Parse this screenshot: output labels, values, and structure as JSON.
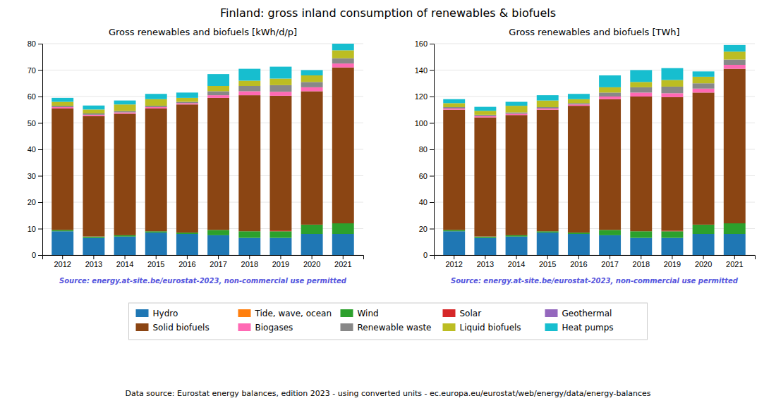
{
  "title": "Finland: gross inland consumption of renewables & biofuels",
  "annotations": [
    "Data source: Eurostat energy balances, edition 2023 - using converted units - ec.europa.eu/eurostat/web/energy/data/energy-balances"
  ],
  "chart_data": [
    {
      "type": "bar",
      "stacked": true,
      "grid": true,
      "legend": "bottom",
      "title": "Gross renewables and biofuels [kWh/d/p]",
      "annotations": [
        "Source: energy.at-site.be/eurostat-2023, non-commercial use permitted"
      ],
      "categories": [
        "2012",
        "2013",
        "2014",
        "2015",
        "2016",
        "2017",
        "2018",
        "2019",
        "2020",
        "2021"
      ],
      "ylim": [
        0,
        80
      ],
      "yticks": [
        0,
        10,
        20,
        30,
        40,
        50,
        60,
        70,
        80
      ],
      "series": [
        {
          "name": "Hydro",
          "color": "#1f77b4",
          "values": [
            9.0,
            6.5,
            7.0,
            8.5,
            8.0,
            7.5,
            6.5,
            6.5,
            8.0,
            8.0
          ]
        },
        {
          "name": "Tide, wave, ocean",
          "color": "#ff7f0e",
          "values": [
            0.0,
            0.0,
            0.0,
            0.0,
            0.0,
            0.0,
            0.0,
            0.0,
            0.0,
            0.0
          ]
        },
        {
          "name": "Wind",
          "color": "#2ca02c",
          "values": [
            0.5,
            0.5,
            0.5,
            0.5,
            0.5,
            2.0,
            2.5,
            2.5,
            3.5,
            4.0
          ]
        },
        {
          "name": "Solar",
          "color": "#d62728",
          "values": [
            0.0,
            0.1,
            0.0,
            0.0,
            0.0,
            0.0,
            0.0,
            0.3,
            0.0,
            0.0
          ]
        },
        {
          "name": "Geothermal",
          "color": "#9467bd",
          "values": [
            0.0,
            0.0,
            0.0,
            0.0,
            0.0,
            0.0,
            0.0,
            0.0,
            0.0,
            0.0
          ]
        },
        {
          "name": "Solid biofuels",
          "color": "#8B4513",
          "values": [
            46.0,
            45.5,
            46.0,
            46.5,
            48.5,
            50.0,
            51.5,
            51.0,
            50.5,
            59.0
          ]
        },
        {
          "name": "Biogases",
          "color": "#ff69b4",
          "values": [
            0.5,
            0.5,
            0.5,
            0.5,
            0.5,
            1.0,
            1.5,
            1.5,
            1.5,
            1.5
          ]
        },
        {
          "name": "Renewable waste",
          "color": "#888888",
          "values": [
            0.5,
            0.5,
            0.5,
            0.5,
            0.5,
            1.5,
            2.0,
            2.5,
            2.0,
            2.0
          ]
        },
        {
          "name": "Liquid biofuels",
          "color": "#bcbd22",
          "values": [
            1.5,
            1.5,
            2.5,
            2.5,
            1.5,
            2.0,
            2.0,
            2.5,
            2.5,
            3.0
          ]
        },
        {
          "name": "Heat pumps",
          "color": "#17becf",
          "values": [
            1.5,
            1.5,
            1.5,
            2.0,
            2.0,
            4.5,
            4.5,
            4.5,
            2.0,
            2.5
          ]
        }
      ]
    },
    {
      "type": "bar",
      "stacked": true,
      "grid": true,
      "legend": "bottom",
      "title": "Gross renewables and biofuels [TWh]",
      "annotations": [
        "Source: energy.at-site.be/eurostat-2023, non-commercial use permitted"
      ],
      "categories": [
        "2012",
        "2013",
        "2014",
        "2015",
        "2016",
        "2017",
        "2018",
        "2019",
        "2020",
        "2021"
      ],
      "ylim": [
        0,
        160
      ],
      "yticks": [
        0,
        20,
        40,
        60,
        80,
        100,
        120,
        140,
        160
      ],
      "series": [
        {
          "name": "Hydro",
          "color": "#1f77b4",
          "values": [
            18.0,
            13.0,
            14.0,
            17.0,
            16.0,
            15.0,
            13.0,
            13.0,
            16.0,
            16.0
          ]
        },
        {
          "name": "Tide, wave, ocean",
          "color": "#ff7f0e",
          "values": [
            0.0,
            0.0,
            0.0,
            0.0,
            0.0,
            0.0,
            0.0,
            0.0,
            0.0,
            0.0
          ]
        },
        {
          "name": "Wind",
          "color": "#2ca02c",
          "values": [
            1.0,
            1.0,
            1.0,
            1.0,
            1.0,
            4.0,
            5.0,
            5.0,
            7.0,
            8.0
          ]
        },
        {
          "name": "Solar",
          "color": "#d62728",
          "values": [
            0.0,
            0.2,
            0.0,
            0.0,
            0.0,
            0.0,
            0.0,
            0.5,
            0.0,
            0.0
          ]
        },
        {
          "name": "Geothermal",
          "color": "#9467bd",
          "values": [
            0.0,
            0.0,
            0.0,
            0.0,
            0.0,
            0.0,
            0.0,
            0.0,
            0.0,
            0.0
          ]
        },
        {
          "name": "Solid biofuels",
          "color": "#8B4513",
          "values": [
            91.0,
            90.0,
            91.0,
            92.0,
            96.0,
            99.0,
            102.0,
            101.0,
            100.0,
            117.0
          ]
        },
        {
          "name": "Biogases",
          "color": "#ff69b4",
          "values": [
            1.0,
            1.0,
            1.0,
            1.0,
            1.0,
            2.0,
            3.0,
            3.0,
            3.0,
            3.0
          ]
        },
        {
          "name": "Renewable waste",
          "color": "#888888",
          "values": [
            1.0,
            1.0,
            1.0,
            1.0,
            1.0,
            3.0,
            4.0,
            5.0,
            4.0,
            4.0
          ]
        },
        {
          "name": "Liquid biofuels",
          "color": "#bcbd22",
          "values": [
            3.0,
            3.0,
            5.0,
            5.0,
            3.0,
            4.0,
            4.0,
            5.0,
            5.0,
            6.0
          ]
        },
        {
          "name": "Heat pumps",
          "color": "#17becf",
          "values": [
            3.0,
            3.0,
            3.0,
            4.0,
            4.0,
            9.0,
            9.0,
            9.0,
            4.0,
            5.0
          ]
        }
      ]
    }
  ]
}
